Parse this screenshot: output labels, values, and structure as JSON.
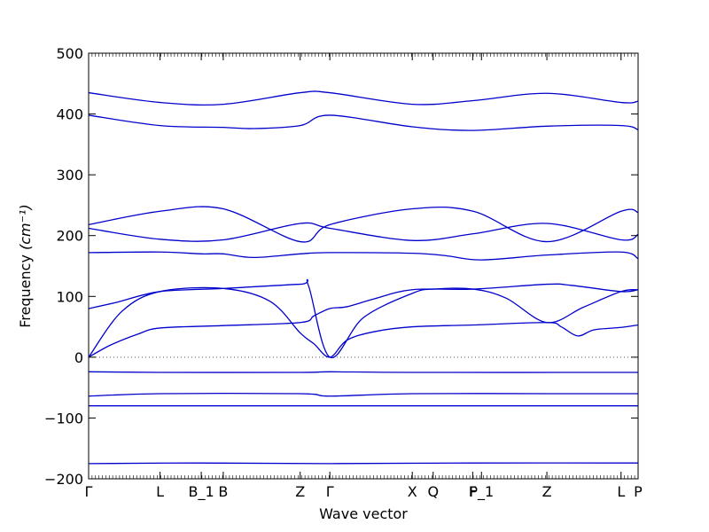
{
  "chart_data": {
    "type": "line",
    "xlabel": "Wave vector",
    "ylabel": "Frequency",
    "ylabel_unit": "(cm⁻¹)",
    "ylim": [
      -200,
      500
    ],
    "yticks": [
      -200,
      -100,
      0,
      100,
      200,
      300,
      400,
      500
    ],
    "ytick_labels": [
      "−200",
      "−100",
      "0",
      "100",
      "200",
      "300",
      "400",
      "500"
    ],
    "xlim": [
      0,
      100
    ],
    "high_symmetry_points": [
      {
        "label": "Γ",
        "x": 0
      },
      {
        "label": "L",
        "x": 13
      },
      {
        "label": "B_1",
        "x": 20.5
      },
      {
        "label": "B",
        "x": 24.5
      },
      {
        "label": "Z",
        "x": 38.5
      },
      {
        "label": "Γ",
        "x": 43.9
      },
      {
        "label": "X",
        "x": 58.9
      },
      {
        "label": "Q",
        "x": 62.7
      },
      {
        "label": "F",
        "x": 69.9
      },
      {
        "label": "P_1",
        "x": 71.5
      },
      {
        "label": "Z",
        "x": 83.4
      },
      {
        "label": "L",
        "x": 96.9
      },
      {
        "label": "P",
        "x": 100
      }
    ],
    "zero_line": true,
    "line_color": "#0000cc",
    "series": [
      {
        "values": [
          [
            0,
            -175
          ],
          [
            20,
            -174
          ],
          [
            43.9,
            -175
          ],
          [
            70,
            -174
          ],
          [
            100,
            -174
          ]
        ]
      },
      {
        "values": [
          [
            0,
            -80
          ],
          [
            20,
            -80
          ],
          [
            43.9,
            -80
          ],
          [
            70,
            -80
          ],
          [
            100,
            -80
          ]
        ]
      },
      {
        "values": [
          [
            0,
            -64
          ],
          [
            13,
            -60
          ],
          [
            38.5,
            -60
          ],
          [
            43.9,
            -64
          ],
          [
            58.9,
            -60
          ],
          [
            83.4,
            -60
          ],
          [
            100,
            -60
          ]
        ]
      },
      {
        "values": [
          [
            0,
            -24
          ],
          [
            13,
            -25
          ],
          [
            38.5,
            -25
          ],
          [
            43.9,
            -24
          ],
          [
            58.9,
            -25
          ],
          [
            100,
            -25
          ]
        ]
      },
      {
        "values": [
          [
            0,
            0
          ],
          [
            4,
            20
          ],
          [
            9,
            38
          ],
          [
            13,
            48
          ],
          [
            24.5,
            52
          ],
          [
            38.5,
            57
          ],
          [
            41,
            68
          ],
          [
            43.9,
            80
          ],
          [
            47,
            83
          ],
          [
            52,
            96
          ],
          [
            58.9,
            111
          ],
          [
            70,
            112
          ],
          [
            83.4,
            120
          ],
          [
            88,
            118
          ],
          [
            96.9,
            108
          ],
          [
            100,
            111
          ]
        ]
      },
      {
        "values": [
          [
            0,
            0
          ],
          [
            6,
            75
          ],
          [
            13,
            108
          ],
          [
            24.5,
            113
          ],
          [
            33,
            92
          ],
          [
            38.5,
            40
          ],
          [
            41,
            22
          ],
          [
            43.9,
            0
          ],
          [
            47,
            28
          ],
          [
            52,
            42
          ],
          [
            58.9,
            50
          ],
          [
            70,
            53
          ],
          [
            83.4,
            57
          ],
          [
            86,
            50
          ],
          [
            89,
            35
          ],
          [
            92,
            45
          ],
          [
            96.9,
            49
          ],
          [
            100,
            53
          ]
        ]
      },
      {
        "values": [
          [
            0,
            80
          ],
          [
            5,
            90
          ],
          [
            13,
            108
          ],
          [
            24.5,
            113
          ],
          [
            38.5,
            120
          ],
          [
            40,
            118
          ],
          [
            43.9,
            0
          ],
          [
            50,
            65
          ],
          [
            58.9,
            105
          ],
          [
            62.7,
            112
          ],
          [
            70,
            112
          ],
          [
            76,
            97
          ],
          [
            83.4,
            57
          ],
          [
            90,
            82
          ],
          [
            96.9,
            108
          ],
          [
            100,
            111
          ]
        ]
      },
      {
        "values": [
          [
            0,
            172
          ],
          [
            13,
            173
          ],
          [
            20.5,
            170
          ],
          [
            24.5,
            170
          ],
          [
            30,
            164
          ],
          [
            38.5,
            170
          ],
          [
            43.9,
            172
          ],
          [
            58.9,
            171
          ],
          [
            65,
            167
          ],
          [
            71.5,
            160
          ],
          [
            83.4,
            168
          ],
          [
            96.9,
            173
          ],
          [
            100,
            162
          ]
        ]
      },
      {
        "values": [
          [
            0,
            212
          ],
          [
            13,
            194
          ],
          [
            24.5,
            193
          ],
          [
            38.5,
            220
          ],
          [
            43.9,
            212
          ],
          [
            58.9,
            192
          ],
          [
            70,
            203
          ],
          [
            83.4,
            220
          ],
          [
            96.9,
            193
          ],
          [
            100,
            202
          ]
        ]
      },
      {
        "values": [
          [
            0,
            218
          ],
          [
            13,
            240
          ],
          [
            24.5,
            244
          ],
          [
            38.5,
            190
          ],
          [
            43.9,
            218
          ],
          [
            58.9,
            244
          ],
          [
            70,
            240
          ],
          [
            83.4,
            190
          ],
          [
            96.9,
            240
          ],
          [
            100,
            238
          ]
        ]
      },
      {
        "values": [
          [
            0,
            398
          ],
          [
            13,
            381
          ],
          [
            24.5,
            378
          ],
          [
            30,
            376
          ],
          [
            38.5,
            381
          ],
          [
            43.9,
            398
          ],
          [
            58.9,
            379
          ],
          [
            70,
            373
          ],
          [
            83.4,
            380
          ],
          [
            96.9,
            381
          ],
          [
            100,
            374
          ]
        ]
      },
      {
        "values": [
          [
            0,
            435
          ],
          [
            13,
            419
          ],
          [
            24.5,
            416
          ],
          [
            38.5,
            435
          ],
          [
            43.9,
            435
          ],
          [
            58.9,
            416
          ],
          [
            70,
            422
          ],
          [
            83.4,
            434
          ],
          [
            96.9,
            419
          ],
          [
            100,
            421
          ]
        ]
      }
    ]
  }
}
